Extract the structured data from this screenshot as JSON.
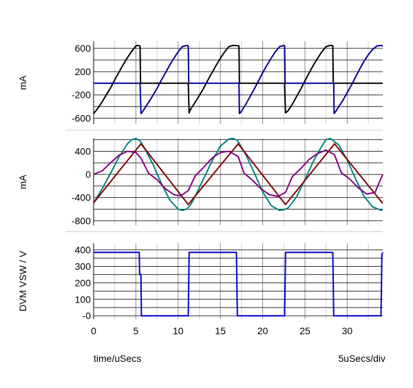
{
  "chart_data": [
    {
      "type": "line",
      "ylabel": "mA",
      "xlim": [
        0,
        34.2
      ],
      "ylim": [
        -700,
        720
      ],
      "grid": true,
      "yticks": [
        600,
        200,
        -200,
        -600
      ],
      "ytick_labels": [
        "600",
        "200",
        "-200",
        "-600"
      ],
      "series": [
        {
          "color": "#000000",
          "x": [
            0,
            0.5,
            1,
            1.5,
            2,
            2.5,
            3,
            3.5,
            4,
            4.5,
            5,
            5.2,
            5.5,
            5.55,
            5.6,
            11.2,
            11.3,
            11.5,
            12,
            12.5,
            13,
            13.5,
            14,
            14.5,
            15,
            15.5,
            16,
            16.5,
            17,
            17.2,
            17.25,
            22.6,
            22.7,
            23,
            23.5,
            24,
            24.5,
            25,
            25.5,
            26,
            26.5,
            27,
            27.5,
            28,
            28.3,
            28.35,
            34.2
          ],
          "y": [
            -520,
            -430,
            -320,
            -200,
            -80,
            60,
            190,
            320,
            440,
            550,
            640,
            650,
            640,
            0,
            0,
            0,
            -510,
            -440,
            -330,
            -210,
            -90,
            50,
            180,
            310,
            430,
            540,
            630,
            650,
            645,
            640,
            0,
            0,
            -510,
            -470,
            -360,
            -230,
            -100,
            40,
            180,
            310,
            430,
            540,
            630,
            650,
            645,
            0,
            0
          ]
        },
        {
          "color": "#00008b",
          "x": [
            0,
            5.5,
            5.6,
            5.7,
            6,
            6.5,
            7,
            7.5,
            8,
            8.5,
            9,
            9.5,
            10,
            10.5,
            11,
            11.2,
            11.25,
            17.2,
            17.25,
            17.5,
            18,
            18.5,
            19,
            19.5,
            20,
            20.5,
            21,
            21.5,
            22,
            22.5,
            22.6,
            22.65,
            28.4,
            28.45,
            28.7,
            29,
            29.5,
            30,
            30.5,
            31,
            31.5,
            32,
            32.5,
            33,
            33.5,
            34,
            34.2
          ],
          "y": [
            0,
            0,
            -520,
            -510,
            -440,
            -330,
            -210,
            -90,
            50,
            180,
            310,
            430,
            540,
            630,
            650,
            640,
            0,
            0,
            -520,
            -480,
            -360,
            -230,
            -100,
            40,
            180,
            310,
            430,
            540,
            630,
            650,
            640,
            0,
            0,
            -520,
            -470,
            -400,
            -290,
            -160,
            -30,
            110,
            250,
            380,
            490,
            580,
            640,
            650,
            640
          ]
        }
      ]
    },
    {
      "type": "line",
      "ylabel": "mA",
      "xlim": [
        0,
        34.2
      ],
      "ylim": [
        -880,
        620
      ],
      "grid": true,
      "yticks": [
        400,
        0,
        -400,
        -800
      ],
      "ytick_labels": [
        "400",
        "0",
        "-400",
        "-800"
      ],
      "series": [
        {
          "color": "#008080",
          "x": [
            0,
            1,
            2,
            3,
            4,
            4.5,
            5,
            5.5,
            6,
            7,
            8,
            9,
            10,
            10.5,
            11,
            11.5,
            12,
            13,
            14,
            15,
            16,
            16.5,
            17,
            18,
            19,
            20,
            21,
            22,
            22.5,
            23,
            24,
            25,
            26,
            27,
            27.5,
            28,
            29,
            30,
            31,
            32,
            33,
            34,
            34.2
          ],
          "y": [
            -490,
            -250,
            20,
            300,
            530,
            600,
            620,
            580,
            460,
            180,
            -150,
            -440,
            -600,
            -620,
            -600,
            -520,
            -380,
            -80,
            230,
            490,
            610,
            620,
            590,
            340,
            30,
            -300,
            -540,
            -620,
            -610,
            -580,
            -390,
            -90,
            230,
            490,
            600,
            620,
            510,
            250,
            -80,
            -380,
            -560,
            -620,
            -610
          ]
        },
        {
          "color": "#800000",
          "x": [
            0,
            5.6,
            11.2,
            17.1,
            22.7,
            28.5,
            34.2
          ],
          "y": [
            -490,
            530,
            -520,
            530,
            -520,
            530,
            -500
          ]
        },
        {
          "color": "#800080",
          "x": [
            0,
            1,
            2,
            3,
            4,
            5,
            5.6,
            6.5,
            7.5,
            8.5,
            9.5,
            10.3,
            11.2,
            12,
            13,
            14,
            15,
            16,
            17.1,
            17.8,
            18.8,
            19.8,
            20.8,
            21.8,
            22.7,
            23.5,
            24.5,
            25.5,
            26.5,
            27.5,
            28.5,
            29.3,
            30.3,
            31.3,
            32.3,
            33.3,
            34.2
          ],
          "y": [
            0,
            60,
            200,
            330,
            400,
            380,
            280,
            20,
            -90,
            -250,
            -350,
            -370,
            -280,
            -30,
            120,
            280,
            380,
            400,
            310,
            20,
            -100,
            -250,
            -350,
            -380,
            -310,
            -40,
            100,
            260,
            360,
            420,
            340,
            30,
            -80,
            -230,
            -340,
            -310,
            0
          ]
        }
      ]
    },
    {
      "type": "line",
      "ylabel": "DVM VSW / V",
      "xlabel": "time/uSecs",
      "scale_note": "5uSecs/div",
      "xlim": [
        0,
        34.2
      ],
      "ylim": [
        -20,
        440
      ],
      "grid": true,
      "xticks": [
        0,
        5,
        10,
        15,
        20,
        25,
        30
      ],
      "xtick_labels": [
        "0",
        "5",
        "10",
        "15",
        "20",
        "25",
        "30"
      ],
      "yticks": [
        400,
        300,
        200,
        100,
        0
      ],
      "ytick_labels": [
        "400",
        "300",
        "200",
        "100",
        "-0"
      ],
      "series": [
        {
          "color": "#0000cd",
          "x": [
            0,
            5.4,
            5.45,
            5.6,
            5.65,
            11.2,
            11.3,
            16.9,
            17.0,
            22.6,
            22.7,
            28.3,
            28.4,
            34.0,
            34.1,
            34.2
          ],
          "y": [
            385,
            385,
            250,
            250,
            0,
            0,
            385,
            385,
            0,
            0,
            385,
            385,
            0,
            0,
            370,
            385
          ]
        }
      ]
    }
  ]
}
